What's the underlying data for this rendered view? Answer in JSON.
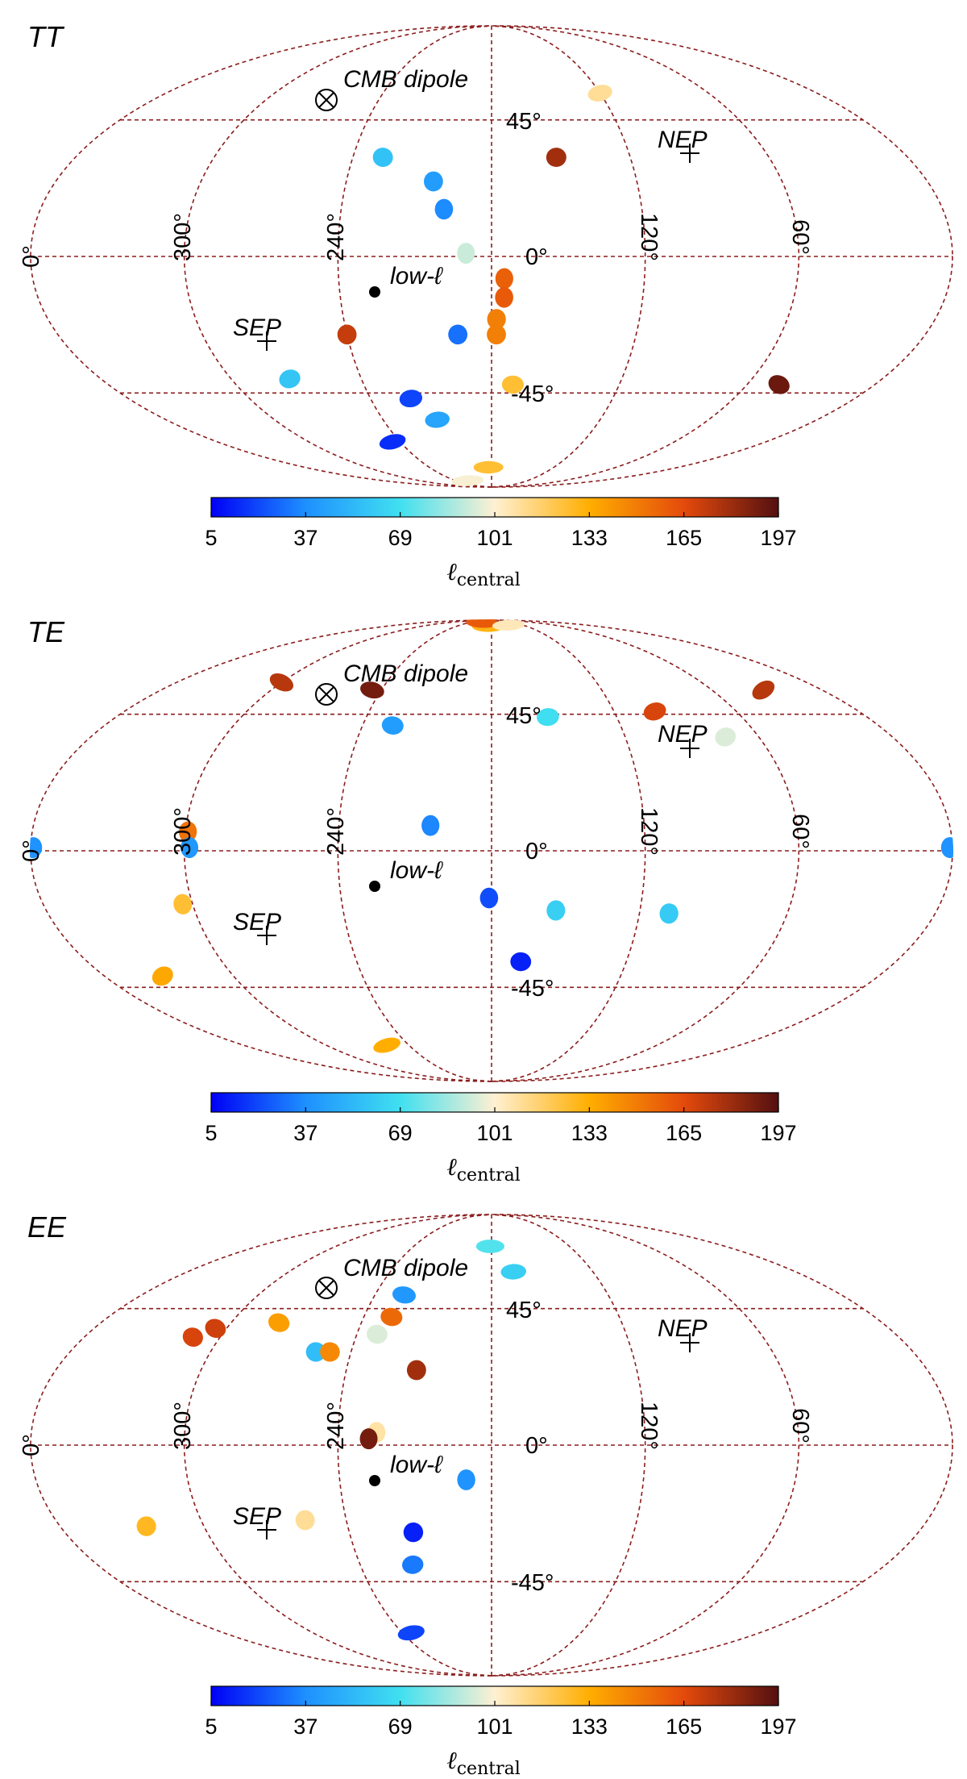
{
  "colormap": {
    "stops": [
      "#0000f5",
      "#1e90ff",
      "#40e0f0",
      "#fff0d2",
      "#ffae00",
      "#e44a0c",
      "#541010"
    ],
    "ticks": [
      "5",
      "37",
      "69",
      "101",
      "133",
      "165",
      "197"
    ],
    "min": 5,
    "max": 197,
    "label_symbol": "ℓ",
    "label_sub": "central"
  },
  "grid_color": "#8b1d1d",
  "annotations": {
    "cmb_dipole": "CMB dipole",
    "cmb_symbol": "⊗",
    "nep": "NEP",
    "sep": "SEP",
    "low_l": "low-ℓ",
    "marker": "+"
  },
  "axis_labels": {
    "lon_0": "0°",
    "lon_300": "300°",
    "lon_240": "240°",
    "lon_120": "120°",
    "lon_60": "60°",
    "lat_45": "45°",
    "lat_0": "0°",
    "lat_m45": "-45°"
  },
  "chart_data": [
    {
      "type": "scatter",
      "title": "TT",
      "projection": "mollweide",
      "xlabel": "",
      "ylabel": "",
      "colorbar_label": "ℓ_central",
      "points": [
        {
          "lon": 120,
          "lat": 55,
          "l": 110
        },
        {
          "lon": 227,
          "lat": 32,
          "l": 57
        },
        {
          "lon": 152,
          "lat": 32,
          "l": 180
        },
        {
          "lon": 204,
          "lat": 24,
          "l": 42
        },
        {
          "lon": 199,
          "lat": 15,
          "l": 36
        },
        {
          "lon": 190,
          "lat": 1,
          "l": 92
        },
        {
          "lon": 175,
          "lat": -7,
          "l": 158
        },
        {
          "lon": 175,
          "lat": -13,
          "l": 160
        },
        {
          "lon": 178,
          "lat": -20,
          "l": 148
        },
        {
          "lon": 178,
          "lat": -25,
          "l": 148
        },
        {
          "lon": 194,
          "lat": -25,
          "l": 30
        },
        {
          "lon": 240,
          "lat": -25,
          "l": 172
        },
        {
          "lon": 273,
          "lat": -40,
          "l": 58
        },
        {
          "lon": 220,
          "lat": -47,
          "l": 20
        },
        {
          "lon": 210,
          "lat": -55,
          "l": 45
        },
        {
          "lon": 170,
          "lat": -42,
          "l": 125
        },
        {
          "lon": 45,
          "lat": -42,
          "l": 192
        },
        {
          "lon": 245,
          "lat": -64,
          "l": 15
        },
        {
          "lon": 183,
          "lat": -76,
          "l": 125
        },
        {
          "lon": 220,
          "lat": -84,
          "l": 100
        }
      ]
    },
    {
      "type": "scatter",
      "title": "TE",
      "projection": "mollweide",
      "xlabel": "",
      "ylabel": "",
      "colorbar_label": "ℓ_central",
      "points": [
        {
          "lon": 245,
          "lat": 54,
          "l": 190
        },
        {
          "lon": 226,
          "lat": 41,
          "l": 42
        },
        {
          "lon": 300,
          "lat": 57,
          "l": 175
        },
        {
          "lon": 186,
          "lat": 84,
          "l": 130
        },
        {
          "lon": 204,
          "lat": 87,
          "l": 160
        },
        {
          "lon": 148,
          "lat": 85,
          "l": 105
        },
        {
          "lon": 32,
          "lat": 54,
          "l": 175
        },
        {
          "lon": 153,
          "lat": 44,
          "l": 68
        },
        {
          "lon": 100,
          "lat": 46,
          "l": 168
        },
        {
          "lon": 75,
          "lat": 37,
          "l": 95
        },
        {
          "lon": 204,
          "lat": 8,
          "l": 35
        },
        {
          "lon": 299,
          "lat": 6,
          "l": 152
        },
        {
          "lon": 298,
          "lat": 1,
          "l": 40
        },
        {
          "lon": 359,
          "lat": 1,
          "l": 38
        },
        {
          "lon": 1,
          "lat": 1,
          "l": 38
        },
        {
          "lon": 304,
          "lat": -17,
          "l": 125
        },
        {
          "lon": 333,
          "lat": -41,
          "l": 135
        },
        {
          "lon": 181,
          "lat": -15,
          "l": 22
        },
        {
          "lon": 154,
          "lat": -19,
          "l": 62
        },
        {
          "lon": 108,
          "lat": -20,
          "l": 60
        },
        {
          "lon": 167,
          "lat": -36,
          "l": 12
        },
        {
          "lon": 256,
          "lat": -68,
          "l": 133
        }
      ]
    },
    {
      "type": "scatter",
      "title": "EE",
      "projection": "mollweide",
      "xlabel": "",
      "ylabel": "",
      "colorbar_label": "ℓ_central",
      "points": [
        {
          "lon": 181,
          "lat": 70,
          "l": 72
        },
        {
          "lon": 167,
          "lat": 59,
          "l": 62
        },
        {
          "lon": 225,
          "lat": 50,
          "l": 40
        },
        {
          "lon": 227,
          "lat": 42,
          "l": 155
        },
        {
          "lon": 231,
          "lat": 36,
          "l": 95
        },
        {
          "lon": 278,
          "lat": 40,
          "l": 138
        },
        {
          "lon": 305,
          "lat": 38,
          "l": 170
        },
        {
          "lon": 312,
          "lat": 35,
          "l": 168
        },
        {
          "lon": 255,
          "lat": 30,
          "l": 55
        },
        {
          "lon": 249,
          "lat": 30,
          "l": 145
        },
        {
          "lon": 211,
          "lat": 24,
          "l": 180
        },
        {
          "lon": 225,
          "lat": 4,
          "l": 108
        },
        {
          "lon": 228,
          "lat": 2,
          "l": 190
        },
        {
          "lon": 190,
          "lat": -11,
          "l": 38
        },
        {
          "lon": 257,
          "lat": -24,
          "l": 110
        },
        {
          "lon": 324,
          "lat": -26,
          "l": 128
        },
        {
          "lon": 213,
          "lat": -28,
          "l": 12
        },
        {
          "lon": 216,
          "lat": -39,
          "l": 32
        },
        {
          "lon": 234,
          "lat": -65,
          "l": 20
        }
      ]
    }
  ]
}
